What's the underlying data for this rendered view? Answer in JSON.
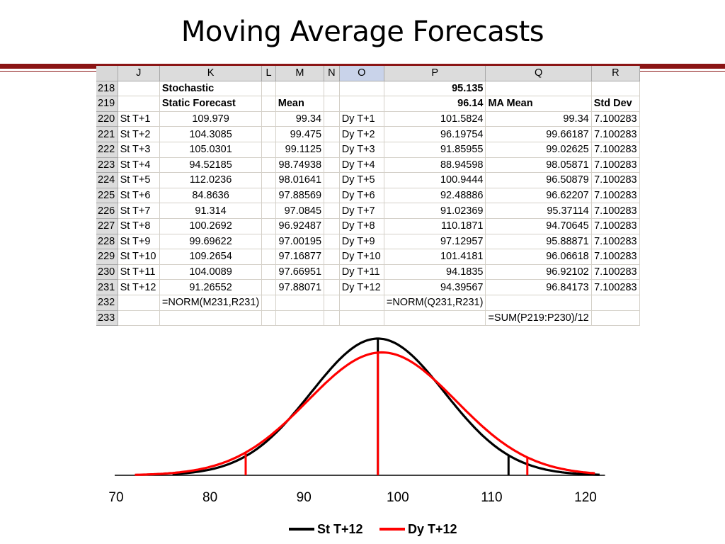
{
  "slide": {
    "title": "Moving Average Forecasts"
  },
  "spreadsheet": {
    "columns": [
      "J",
      "K",
      "L",
      "M",
      "N",
      "O",
      "P",
      "Q",
      "R"
    ],
    "selected_column": "O",
    "rows": [
      {
        "num": "218",
        "J": "",
        "K": "Stochastic",
        "L": "",
        "M": "",
        "N": "",
        "O": "",
        "P": "95.135",
        "Q": "",
        "R": ""
      },
      {
        "num": "219",
        "J": "",
        "K": "Static Forecast",
        "L": "",
        "M": "Mean",
        "N": "",
        "O": "",
        "P": "96.14",
        "Q": "MA Mean",
        "R": "Std Dev"
      },
      {
        "num": "220",
        "J": "St T+1",
        "K": "109.979",
        "L": "",
        "M": "99.34",
        "N": "",
        "O": "Dy T+1",
        "P": "101.5824",
        "Q": "99.34",
        "R": "7.100283"
      },
      {
        "num": "221",
        "J": "St T+2",
        "K": "104.3085",
        "L": "",
        "M": "99.475",
        "N": "",
        "O": "Dy T+2",
        "P": "96.19754",
        "Q": "99.66187",
        "R": "7.100283"
      },
      {
        "num": "222",
        "J": "St T+3",
        "K": "105.0301",
        "L": "",
        "M": "99.1125",
        "N": "",
        "O": "Dy T+3",
        "P": "91.85955",
        "Q": "99.02625",
        "R": "7.100283"
      },
      {
        "num": "223",
        "J": "St T+4",
        "K": "94.52185",
        "L": "",
        "M": "98.74938",
        "N": "",
        "O": "Dy T+4",
        "P": "88.94598",
        "Q": "98.05871",
        "R": "7.100283"
      },
      {
        "num": "224",
        "J": "St T+5",
        "K": "112.0236",
        "L": "",
        "M": "98.01641",
        "N": "",
        "O": "Dy T+5",
        "P": "100.9444",
        "Q": "96.50879",
        "R": "7.100283"
      },
      {
        "num": "225",
        "J": "St T+6",
        "K": "84.8636",
        "L": "",
        "M": "97.88569",
        "N": "",
        "O": "Dy T+6",
        "P": "92.48886",
        "Q": "96.62207",
        "R": "7.100283"
      },
      {
        "num": "226",
        "J": "St T+7",
        "K": "91.314",
        "L": "",
        "M": "97.0845",
        "N": "",
        "O": "Dy T+7",
        "P": "91.02369",
        "Q": "95.37114",
        "R": "7.100283"
      },
      {
        "num": "227",
        "J": "St T+8",
        "K": "100.2692",
        "L": "",
        "M": "96.92487",
        "N": "",
        "O": "Dy T+8",
        "P": "110.1871",
        "Q": "94.70645",
        "R": "7.100283"
      },
      {
        "num": "228",
        "J": "St T+9",
        "K": "99.69622",
        "L": "",
        "M": "97.00195",
        "N": "",
        "O": "Dy T+9",
        "P": "97.12957",
        "Q": "95.88871",
        "R": "7.100283"
      },
      {
        "num": "229",
        "J": "St T+10",
        "K": "109.2654",
        "L": "",
        "M": "97.16877",
        "N": "",
        "O": "Dy T+10",
        "P": "101.4181",
        "Q": "96.06618",
        "R": "7.100283"
      },
      {
        "num": "230",
        "J": "St T+11",
        "K": "104.0089",
        "L": "",
        "M": "97.66951",
        "N": "",
        "O": "Dy T+11",
        "P": "94.1835",
        "Q": "96.92102",
        "R": "7.100283"
      },
      {
        "num": "231",
        "J": "St T+12",
        "K": "91.26552",
        "L": "",
        "M": "97.88071",
        "N": "",
        "O": "Dy T+12",
        "P": "94.39567",
        "Q": "96.84173",
        "R": "7.100283"
      },
      {
        "num": "232",
        "J": "",
        "K": "=NORM(M231,R231)",
        "L": "",
        "M": "",
        "N": "",
        "O": "",
        "P": "=NORM(Q231,R231)",
        "Q": "",
        "R": ""
      },
      {
        "num": "233",
        "J": "",
        "K": "",
        "L": "",
        "M": "",
        "N": "",
        "O": "",
        "P": "",
        "Q": "=SUM(P219:P230)/12",
        "R": ""
      }
    ]
  },
  "chart_data": {
    "type": "line",
    "xlim": [
      70,
      122
    ],
    "x_ticks": [
      "70",
      "80",
      "90",
      "100",
      "110",
      "120"
    ],
    "series": [
      {
        "name": "St T+12",
        "color": "#000000",
        "mean": 97.88,
        "sd": 7.1,
        "x_range": [
          76,
          121.5
        ],
        "markers": [
          97.88,
          111.8
        ]
      },
      {
        "name": "Dy T+12",
        "color": "#ff0000",
        "mean": 98.3,
        "sd": 7.9,
        "x_range": [
          72,
          121.2
        ],
        "markers": [
          83.8,
          97.88,
          113.8
        ]
      }
    ],
    "legend": {
      "position": "bottom-center",
      "items": [
        "St T+12",
        "Dy T+12"
      ]
    }
  }
}
